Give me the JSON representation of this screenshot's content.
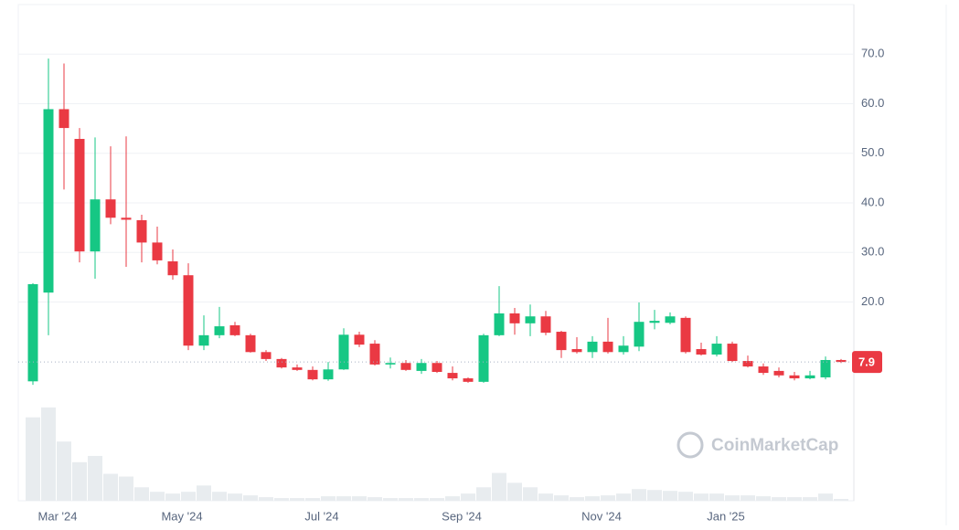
{
  "chart_data": {
    "type": "candlestick",
    "categories": [
      null,
      "Mar '24",
      null,
      null,
      null,
      null,
      null,
      null,
      null,
      "May '24",
      null,
      null,
      null,
      null,
      null,
      null,
      null,
      null,
      "Jul '24",
      null,
      null,
      null,
      null,
      null,
      null,
      null,
      null,
      "Sep '24",
      null,
      null,
      null,
      null,
      null,
      null,
      null,
      null,
      "Nov '24",
      null,
      null,
      null,
      null,
      null,
      null,
      null,
      "Jan '25",
      null,
      null,
      null,
      null,
      null,
      null,
      null,
      null
    ],
    "open": [
      4.0,
      21.9,
      58.9,
      52.9,
      30.2,
      40.7,
      37.0,
      36.5,
      32.0,
      28.2,
      25.4,
      11.2,
      13.3,
      15.3,
      13.3,
      9.9,
      8.5,
      6.8,
      6.3,
      4.4,
      6.4,
      13.4,
      11.6,
      7.4,
      7.7,
      6.1,
      7.7,
      5.7,
      4.6,
      3.9,
      13.3,
      17.7,
      15.7,
      17.1,
      14.0,
      10.5,
      9.9,
      12.0,
      9.9,
      11.0,
      15.8,
      15.8,
      16.8,
      10.5,
      9.4,
      11.6,
      8.1,
      7.0,
      6.1,
      5.2,
      4.6,
      4.8,
      8.3
    ],
    "high": [
      23.8,
      69.1,
      68.1,
      55.1,
      53.2,
      51.4,
      53.4,
      37.6,
      35.2,
      30.6,
      27.8,
      17.3,
      19.0,
      16.0,
      13.6,
      10.3,
      8.7,
      7.4,
      7.0,
      7.9,
      14.7,
      14.0,
      12.3,
      8.8,
      8.3,
      8.5,
      8.1,
      7.0,
      4.8,
      13.6,
      23.2,
      18.8,
      19.5,
      18.2,
      14.2,
      12.9,
      13.1,
      16.8,
      13.1,
      19.9,
      18.4,
      17.9,
      17.1,
      11.8,
      13.1,
      12.0,
      9.2,
      7.6,
      6.8,
      5.9,
      6.1,
      9.0,
      8.5
    ],
    "low": [
      3.3,
      13.3,
      42.7,
      28.0,
      24.7,
      35.7,
      27.1,
      28.0,
      27.6,
      24.5,
      10.3,
      10.3,
      12.7,
      13.1,
      9.8,
      8.1,
      6.6,
      6.1,
      4.2,
      4.1,
      6.3,
      10.9,
      7.2,
      6.6,
      6.1,
      5.5,
      5.7,
      4.2,
      3.7,
      3.7,
      13.1,
      13.4,
      13.1,
      13.3,
      8.7,
      9.6,
      8.7,
      9.6,
      9.4,
      10.1,
      14.5,
      15.5,
      9.6,
      9.2,
      9.0,
      7.9,
      6.8,
      5.3,
      4.8,
      4.2,
      4.4,
      4.4,
      7.7
    ],
    "close": [
      23.6,
      58.9,
      55.1,
      30.2,
      40.7,
      37.0,
      36.6,
      32.0,
      28.4,
      25.4,
      11.2,
      13.3,
      15.1,
      13.3,
      9.9,
      8.5,
      6.8,
      6.3,
      4.4,
      6.4,
      13.4,
      11.4,
      7.4,
      7.7,
      6.3,
      7.7,
      5.9,
      4.6,
      3.9,
      13.3,
      17.7,
      15.7,
      17.1,
      13.8,
      10.3,
      9.9,
      12.0,
      9.9,
      11.2,
      16.0,
      16.2,
      17.1,
      9.9,
      9.4,
      11.6,
      8.1,
      7.0,
      5.7,
      5.2,
      4.6,
      5.2,
      8.3,
      7.9
    ],
    "volume": [
      93,
      104,
      66,
      43,
      50,
      30,
      27,
      15,
      10,
      8,
      10,
      17,
      10,
      8,
      6,
      4,
      3,
      3,
      3,
      5,
      5,
      5,
      4,
      3,
      3,
      3,
      3,
      5,
      8,
      15,
      31,
      20,
      15,
      8,
      6,
      4,
      5,
      6,
      8,
      13,
      12,
      11,
      10,
      8,
      8,
      6,
      6,
      5,
      4,
      4,
      4,
      8,
      2
    ],
    "vlim": [
      0,
      110
    ],
    "up_color": "#16c784",
    "down_color": "#ea3943",
    "volume_color": "#e8ecef",
    "ylim": [
      0,
      80
    ],
    "yticks": [
      {
        "value": 20,
        "label": "20.0"
      },
      {
        "value": 30,
        "label": "30.0"
      },
      {
        "value": 40,
        "label": "40.0"
      },
      {
        "value": 50,
        "label": "50.0"
      },
      {
        "value": 60,
        "label": "60.0"
      },
      {
        "value": 70,
        "label": "70.0"
      }
    ],
    "grid": true,
    "last_price": 7.9,
    "watermark": "CoinMarketCap"
  }
}
